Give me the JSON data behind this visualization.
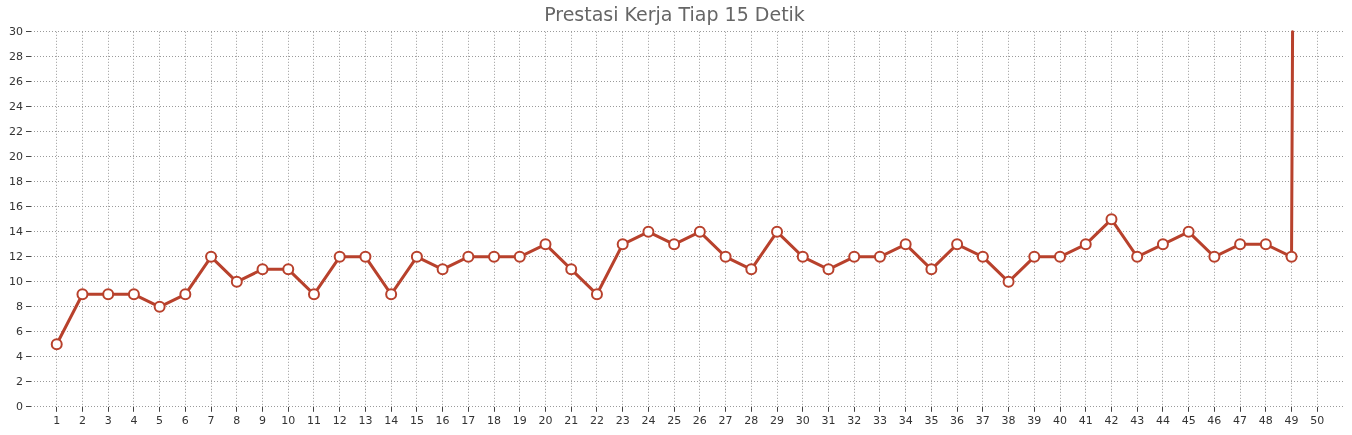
{
  "chart_data": {
    "type": "line",
    "title": "Prestasi Kerja Tiap 15 Detik",
    "x": [
      1,
      2,
      3,
      4,
      5,
      6,
      7,
      8,
      9,
      10,
      11,
      12,
      13,
      14,
      15,
      16,
      17,
      18,
      19,
      20,
      21,
      22,
      23,
      24,
      25,
      26,
      27,
      28,
      29,
      30,
      31,
      32,
      33,
      34,
      35,
      36,
      37,
      38,
      39,
      40,
      41,
      42,
      43,
      44,
      45,
      46,
      47,
      48,
      49
    ],
    "series": [
      {
        "color": "#b8412c",
        "values": [
          5,
          9,
          9,
          9,
          8,
          9,
          12,
          10,
          11,
          11,
          9,
          12,
          12,
          9,
          12,
          11,
          12,
          12,
          12,
          13,
          11,
          9,
          13,
          14,
          13,
          14,
          12,
          11,
          14,
          12,
          11,
          12,
          12,
          13,
          11,
          13,
          12,
          10,
          12,
          12,
          13,
          15,
          12,
          13,
          14,
          12,
          13,
          13,
          12
        ]
      },
      {
        "color": "#b8412c",
        "x": [
          49,
          49.04
        ],
        "values": [
          12,
          30
        ],
        "marker": "none"
      }
    ],
    "xlim": [
      0,
      51
    ],
    "xticks": [
      1,
      2,
      3,
      4,
      5,
      6,
      7,
      8,
      9,
      10,
      11,
      12,
      13,
      14,
      15,
      16,
      17,
      18,
      19,
      20,
      21,
      22,
      23,
      24,
      25,
      26,
      27,
      28,
      29,
      30,
      31,
      32,
      33,
      34,
      35,
      36,
      37,
      38,
      39,
      40,
      41,
      42,
      43,
      44,
      45,
      46,
      47,
      48,
      49,
      50
    ],
    "ylim": [
      0,
      30
    ],
    "yticks": [
      0,
      2,
      4,
      6,
      8,
      10,
      12,
      14,
      16,
      18,
      20,
      22,
      24,
      26,
      28,
      30
    ],
    "grid": true,
    "marker": "circle",
    "line_style": "solid"
  }
}
